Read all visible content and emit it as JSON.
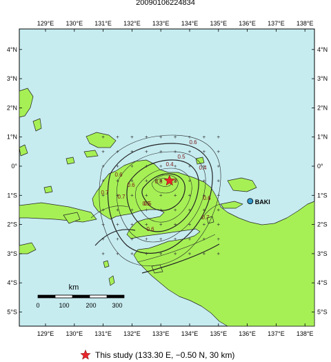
{
  "title": "20090106224834",
  "lon_ticks": [
    "129°E",
    "130°E",
    "131°E",
    "132°E",
    "133°E",
    "134°E",
    "135°E",
    "136°E",
    "137°E",
    "138°E"
  ],
  "lat_ticks": [
    "4°N",
    "3°N",
    "2°N",
    "1°N",
    "0°",
    "1°S",
    "2°S",
    "3°S",
    "4°S",
    "5°S"
  ],
  "scale": {
    "unit": "km",
    "labels": [
      "0",
      "100",
      "200",
      "300"
    ]
  },
  "contour_labels": [
    "0.6",
    "0.5",
    "0.4",
    "0.4",
    "0.3",
    "0.5",
    "0.6",
    "0.6",
    "0.7",
    "0.7",
    "0.8",
    "0.6",
    "0.7",
    "0.5",
    "0.6"
  ],
  "station": {
    "name": "BAKI",
    "lon": 136.1,
    "lat": -1.2,
    "color": "#3399cc"
  },
  "epicenter": {
    "lon": 133.3,
    "lat": -0.5,
    "depth_km": 30,
    "color": "#e8262b"
  },
  "legend": {
    "label": "This study (133.30 E, −0.50 N, 30 km)",
    "icon": "star-icon"
  },
  "colors": {
    "sea": "#c6ecf0",
    "land": "#a6f056",
    "coast": "#222222"
  }
}
